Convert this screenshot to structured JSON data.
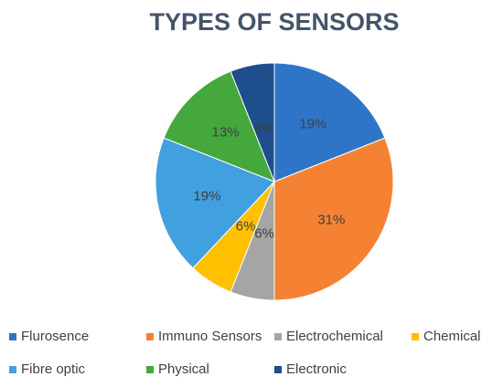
{
  "chart_data": {
    "type": "pie",
    "title": "TYPES OF SENSORS",
    "categories": [
      "Flurosence",
      "Immuno Sensors",
      "Electrochemical",
      "Chemical",
      "Fibre optic",
      "Physical",
      "Electronic"
    ],
    "values": [
      19,
      31,
      6,
      6,
      19,
      13,
      6
    ],
    "value_labels": [
      "19%",
      "31%",
      "6%",
      "6%",
      "19%",
      "13%",
      "6%"
    ],
    "colors": [
      "#2e75c8",
      "#f58233",
      "#a5a5a5",
      "#ffc000",
      "#41a0e0",
      "#44a83c",
      "#1f4e8c"
    ],
    "legend": "bottom"
  }
}
